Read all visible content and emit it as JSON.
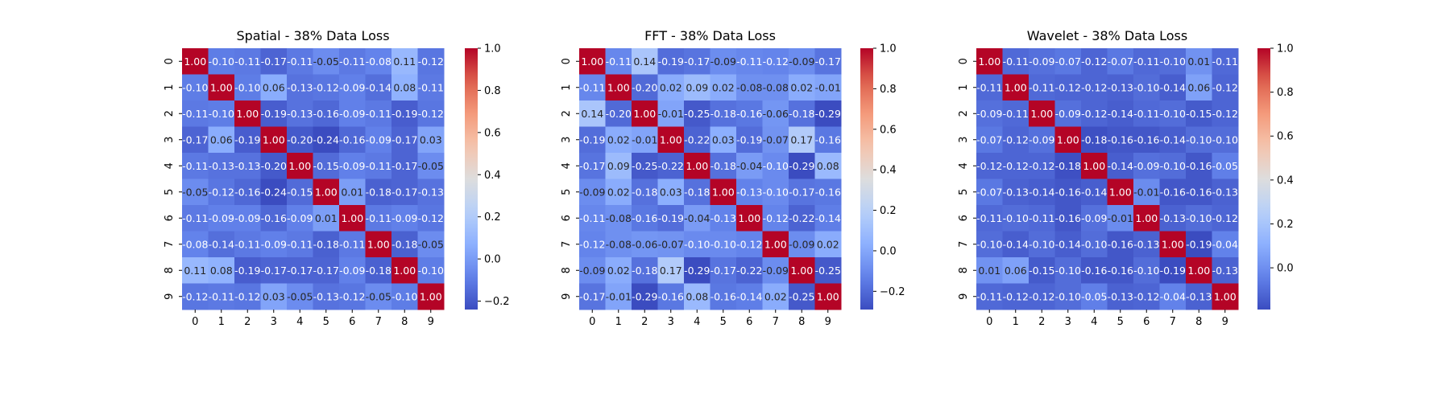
{
  "chart_data": [
    {
      "type": "heatmap",
      "title": "Spatial - 38% Data Loss",
      "x_labels": [
        "0",
        "1",
        "2",
        "3",
        "4",
        "5",
        "6",
        "7",
        "8",
        "9"
      ],
      "y_labels": [
        "0",
        "1",
        "2",
        "3",
        "4",
        "5",
        "6",
        "7",
        "8",
        "9"
      ],
      "colormap": "coolwarm",
      "vmin": -0.24,
      "vmax": 1.0,
      "colorbar_ticks": [
        -0.2,
        0.0,
        0.2,
        0.4,
        0.6,
        0.8,
        1.0
      ],
      "colorbar_tick_labels": [
        "−0.2",
        "0.0",
        "0.2",
        "0.4",
        "0.6",
        "0.8",
        "1.0"
      ],
      "values": [
        [
          1.0,
          -0.1,
          -0.11,
          -0.17,
          -0.11,
          -0.05,
          -0.11,
          -0.08,
          0.11,
          -0.12
        ],
        [
          -0.1,
          1.0,
          -0.1,
          0.06,
          -0.13,
          -0.12,
          -0.09,
          -0.14,
          0.08,
          -0.11
        ],
        [
          -0.11,
          -0.1,
          1.0,
          -0.19,
          -0.13,
          -0.16,
          -0.09,
          -0.11,
          -0.19,
          -0.12
        ],
        [
          -0.17,
          0.06,
          -0.19,
          1.0,
          -0.2,
          -0.24,
          -0.16,
          -0.09,
          -0.17,
          0.03
        ],
        [
          -0.11,
          -0.13,
          -0.13,
          -0.2,
          1.0,
          -0.15,
          -0.09,
          -0.11,
          -0.17,
          -0.05
        ],
        [
          -0.05,
          -0.12,
          -0.16,
          -0.24,
          -0.15,
          1.0,
          0.01,
          -0.18,
          -0.17,
          -0.13
        ],
        [
          -0.11,
          -0.09,
          -0.09,
          -0.16,
          -0.09,
          0.01,
          1.0,
          -0.11,
          -0.09,
          -0.12
        ],
        [
          -0.08,
          -0.14,
          -0.11,
          -0.09,
          -0.11,
          -0.18,
          -0.11,
          1.0,
          -0.18,
          -0.05
        ],
        [
          0.11,
          0.08,
          -0.19,
          -0.17,
          -0.17,
          -0.17,
          -0.09,
          -0.18,
          1.0,
          -0.1
        ],
        [
          -0.12,
          -0.11,
          -0.12,
          0.03,
          -0.05,
          -0.13,
          -0.12,
          -0.05,
          -0.1,
          1.0
        ]
      ]
    },
    {
      "type": "heatmap",
      "title": "FFT - 38% Data Loss",
      "x_labels": [
        "0",
        "1",
        "2",
        "3",
        "4",
        "5",
        "6",
        "7",
        "8",
        "9"
      ],
      "y_labels": [
        "0",
        "1",
        "2",
        "3",
        "4",
        "5",
        "6",
        "7",
        "8",
        "9"
      ],
      "colormap": "coolwarm",
      "vmin": -0.29,
      "vmax": 1.0,
      "colorbar_ticks": [
        -0.2,
        0.0,
        0.2,
        0.4,
        0.6,
        0.8,
        1.0
      ],
      "colorbar_tick_labels": [
        "−0.2",
        "0.0",
        "0.2",
        "0.4",
        "0.6",
        "0.8",
        "1.0"
      ],
      "values": [
        [
          1.0,
          -0.11,
          0.14,
          -0.19,
          -0.17,
          -0.09,
          -0.11,
          -0.12,
          -0.09,
          -0.17
        ],
        [
          -0.11,
          1.0,
          -0.2,
          0.02,
          0.09,
          0.02,
          -0.08,
          -0.08,
          0.02,
          -0.01
        ],
        [
          0.14,
          -0.2,
          1.0,
          -0.01,
          -0.25,
          -0.18,
          -0.16,
          -0.06,
          -0.18,
          -0.29
        ],
        [
          -0.19,
          0.02,
          -0.01,
          1.0,
          -0.22,
          0.03,
          -0.19,
          -0.07,
          0.17,
          -0.16
        ],
        [
          -0.17,
          0.09,
          -0.25,
          -0.22,
          1.0,
          -0.18,
          -0.04,
          -0.1,
          -0.29,
          0.08
        ],
        [
          -0.09,
          0.02,
          -0.18,
          0.03,
          -0.18,
          1.0,
          -0.13,
          -0.1,
          -0.17,
          -0.16
        ],
        [
          -0.11,
          -0.08,
          -0.16,
          -0.19,
          -0.04,
          -0.13,
          1.0,
          -0.12,
          -0.22,
          -0.14
        ],
        [
          -0.12,
          -0.08,
          -0.06,
          -0.07,
          -0.1,
          -0.1,
          -0.12,
          1.0,
          -0.09,
          0.02
        ],
        [
          -0.09,
          0.02,
          -0.18,
          0.17,
          -0.29,
          -0.17,
          -0.22,
          -0.09,
          1.0,
          -0.25
        ],
        [
          -0.17,
          -0.01,
          -0.29,
          -0.16,
          0.08,
          -0.16,
          -0.14,
          0.02,
          -0.25,
          1.0
        ]
      ]
    },
    {
      "type": "heatmap",
      "title": "Wavelet - 38% Data Loss",
      "x_labels": [
        "0",
        "1",
        "2",
        "3",
        "4",
        "5",
        "6",
        "7",
        "8",
        "9"
      ],
      "y_labels": [
        "0",
        "1",
        "2",
        "3",
        "4",
        "5",
        "6",
        "7",
        "8",
        "9"
      ],
      "colormap": "coolwarm",
      "vmin": -0.19,
      "vmax": 1.0,
      "colorbar_ticks": [
        0.0,
        0.2,
        0.4,
        0.6,
        0.8,
        1.0
      ],
      "colorbar_tick_labels": [
        "0.0",
        "0.2",
        "0.4",
        "0.6",
        "0.8",
        "1.0"
      ],
      "values": [
        [
          1.0,
          -0.11,
          -0.09,
          -0.07,
          -0.12,
          -0.07,
          -0.11,
          -0.1,
          0.01,
          -0.11
        ],
        [
          -0.11,
          1.0,
          -0.11,
          -0.12,
          -0.12,
          -0.13,
          -0.1,
          -0.14,
          0.06,
          -0.12
        ],
        [
          -0.09,
          -0.11,
          1.0,
          -0.09,
          -0.12,
          -0.14,
          -0.11,
          -0.1,
          -0.15,
          -0.12
        ],
        [
          -0.07,
          -0.12,
          -0.09,
          1.0,
          -0.18,
          -0.16,
          -0.16,
          -0.14,
          -0.1,
          -0.1
        ],
        [
          -0.12,
          -0.12,
          -0.12,
          -0.18,
          1.0,
          -0.14,
          -0.09,
          -0.1,
          -0.16,
          -0.05
        ],
        [
          -0.07,
          -0.13,
          -0.14,
          -0.16,
          -0.14,
          1.0,
          -0.01,
          -0.16,
          -0.16,
          -0.13
        ],
        [
          -0.11,
          -0.1,
          -0.11,
          -0.16,
          -0.09,
          -0.01,
          1.0,
          -0.13,
          -0.1,
          -0.12
        ],
        [
          -0.1,
          -0.14,
          -0.1,
          -0.14,
          -0.1,
          -0.16,
          -0.13,
          1.0,
          -0.19,
          -0.04
        ],
        [
          0.01,
          0.06,
          -0.15,
          -0.1,
          -0.16,
          -0.16,
          -0.1,
          -0.19,
          1.0,
          -0.13
        ],
        [
          -0.11,
          -0.12,
          -0.12,
          -0.1,
          -0.05,
          -0.13,
          -0.12,
          -0.04,
          -0.13,
          1.0
        ]
      ]
    }
  ]
}
